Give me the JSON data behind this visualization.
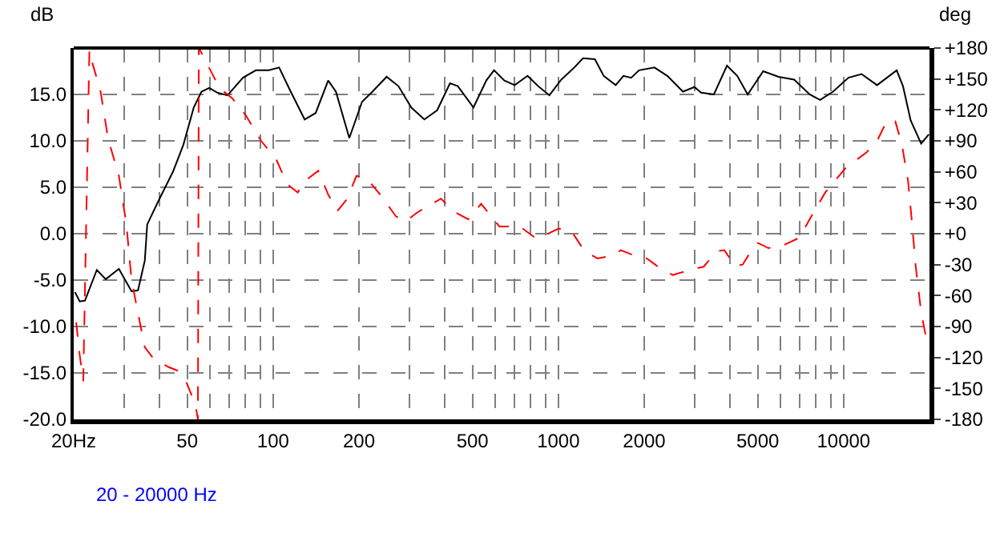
{
  "chart_data": {
    "type": "line",
    "ylabel": "dB",
    "y2label": "deg",
    "annotations": [
      "20 - 20000 Hz"
    ],
    "log": "x",
    "grid": true,
    "xlim": [
      20,
      20000
    ],
    "xticks": [
      {
        "value": 20,
        "label": "20Hz"
      },
      {
        "value": 30,
        "label": null
      },
      {
        "value": 40,
        "label": null
      },
      50,
      {
        "value": 60,
        "label": null
      },
      {
        "value": 70,
        "label": null
      },
      {
        "value": 80,
        "label": null
      },
      {
        "value": 90,
        "label": null
      },
      100,
      200,
      {
        "value": 300,
        "label": null
      },
      {
        "value": 400,
        "label": null
      },
      500,
      {
        "value": 600,
        "label": null
      },
      {
        "value": 700,
        "label": null
      },
      {
        "value": 800,
        "label": null
      },
      {
        "value": 900,
        "label": null
      },
      1000,
      2000,
      {
        "value": 3000,
        "label": null
      },
      {
        "value": 4000,
        "label": null
      },
      5000,
      {
        "value": 6000,
        "label": null
      },
      {
        "value": 7000,
        "label": null
      },
      {
        "value": 8000,
        "label": null
      },
      {
        "value": 9000,
        "label": null
      },
      10000
    ],
    "ylim": [
      -20,
      20
    ],
    "yticks": [
      {
        "value": -20,
        "label": "-20.0"
      },
      {
        "value": -15,
        "label": "-15.0"
      },
      {
        "value": -10,
        "label": "-10.0"
      },
      {
        "value": -5,
        "label": "-5.0"
      },
      {
        "value": 0,
        "label": "0.0"
      },
      {
        "value": 5,
        "label": "5.0"
      },
      {
        "value": 10,
        "label": "10.0"
      },
      {
        "value": 15,
        "label": "15.0"
      }
    ],
    "y2lim": [
      -180,
      180
    ],
    "y2ticks": [
      -180,
      -150,
      -120,
      -90,
      -60,
      -30,
      {
        "value": 0,
        "label": "+0"
      },
      {
        "value": 30,
        "label": "+30"
      },
      {
        "value": 60,
        "label": "+60"
      },
      {
        "value": 90,
        "label": "+90"
      },
      {
        "value": 120,
        "label": "+120"
      },
      {
        "value": 150,
        "label": "+150"
      },
      {
        "value": 180,
        "label": "+180"
      }
    ],
    "series": [
      {
        "color": "#000000",
        "line_style": "solid",
        "x": [
          20.2,
          21.0,
          21.9,
          24.1,
          25.9,
          28.8,
          31.9,
          33.6,
          35.5,
          36.2,
          39.3,
          44.6,
          48.5,
          52.7,
          56.1,
          59.7,
          63.6,
          69.2,
          78.4,
          87.0,
          96.6,
          105,
          114,
          129,
          141,
          156,
          166,
          185,
          205,
          223,
          250,
          275,
          305,
          339,
          376,
          417,
          444,
          504,
          559,
          595,
          647,
          703,
          780,
          849,
          930,
          1024,
          1137,
          1220,
          1343,
          1442,
          1589,
          1691,
          1800,
          1918,
          2172,
          2410,
          2734,
          3000,
          3165,
          3510,
          3900,
          4238,
          4611,
          5226,
          5918,
          6710,
          7604,
          8276,
          9180,
          10400,
          11560,
          13100,
          15350,
          16150,
          17180,
          18700,
          19900
        ],
        "values": [
          -6.3,
          -7.3,
          -7.2,
          -3.9,
          -4.9,
          -3.8,
          -6.2,
          -6.1,
          -2.9,
          1.0,
          3.3,
          6.7,
          9.6,
          13.6,
          15.3,
          15.7,
          15.2,
          14.9,
          16.8,
          17.6,
          17.6,
          17.9,
          15.6,
          12.3,
          13.0,
          16.5,
          15.3,
          10.3,
          14.2,
          15.3,
          16.9,
          15.9,
          13.6,
          12.3,
          13.3,
          16.2,
          15.9,
          13.6,
          16.5,
          17.6,
          16.5,
          16.0,
          17.0,
          15.9,
          14.9,
          16.6,
          17.9,
          18.9,
          18.8,
          17.0,
          16.0,
          17.0,
          16.8,
          17.6,
          17.9,
          17.0,
          15.3,
          15.8,
          15.2,
          15.0,
          18.1,
          17.0,
          15.0,
          17.5,
          16.9,
          16.6,
          15.0,
          14.4,
          15.3,
          16.8,
          17.2,
          16.0,
          17.6,
          15.9,
          12.2,
          9.7,
          10.7
        ]
      },
      {
        "color": "#ff0000",
        "line_style": "dashed",
        "axis": "y2",
        "x": [
          20.4,
          21.0,
          21.6,
          22.7,
          23.1,
          24.8,
          26.4,
          28.8,
          30.6,
          31.9,
          34.0,
          35.5,
          37.8,
          42.8,
          46.5,
          49.5,
          51.7,
          53.8,
          54.5,
          54.9,
          55.7,
          58.6,
          65.0,
          72.1,
          80.1,
          90.8,
          103,
          112,
          122,
          129,
          144,
          156,
          168,
          181,
          196,
          214,
          242,
          269,
          292,
          318,
          345,
          388,
          426,
          483,
          536,
          621,
          733,
          830,
          904,
          1003,
          1114,
          1236,
          1371,
          1556,
          1656,
          1840,
          2042,
          2314,
          2518,
          2911,
          3231,
          3588,
          3819,
          4154,
          4426,
          4810,
          5015,
          5449,
          6171,
          6994,
          7604,
          8625,
          10190,
          12050,
          13100,
          14230,
          15170,
          16000,
          16830,
          17390,
          17900,
          18700,
          19500
        ],
        "values": [
          -86,
          -118,
          -143,
          178,
          168,
          139,
          92,
          56,
          9,
          -45,
          -84,
          -110,
          -120,
          -129,
          -133,
          -143,
          -156,
          -171,
          -180,
          180,
          177,
          165,
          141,
          131,
          115,
          90,
          71,
          48,
          40,
          51,
          61,
          38,
          22,
          33,
          56,
          53,
          35,
          17,
          12,
          20,
          26,
          34,
          22,
          14,
          29,
          7,
          7,
          -4,
          -1,
          5,
          2,
          -17,
          -24,
          -21,
          -16,
          -21,
          -24,
          -35,
          -40,
          -35,
          -32,
          -17,
          -16,
          -31,
          -30,
          -14,
          -9,
          -14,
          -11,
          -4,
          14,
          40,
          64,
          79,
          90,
          110,
          109,
          87,
          51,
          9,
          -32,
          -76,
          -102
        ]
      }
    ]
  }
}
